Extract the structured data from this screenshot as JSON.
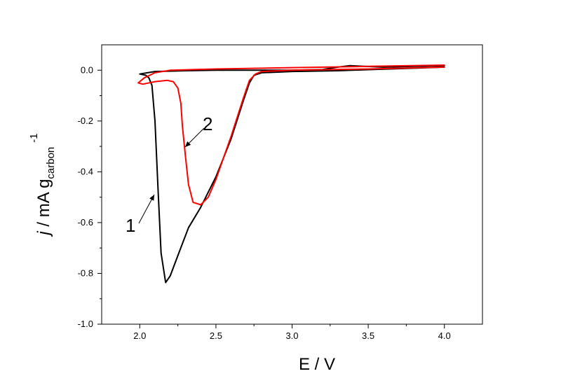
{
  "chart_data": {
    "type": "line",
    "xlabel": "E / V",
    "ylabel": {
      "prefix": "j",
      "middle": " / mA g",
      "subscript": "carbon",
      "superscript": "-1"
    },
    "xlim": [
      1.75,
      4.25
    ],
    "ylim": [
      -1.0,
      0.1
    ],
    "x_ticks": [
      2.0,
      2.5,
      3.0,
      3.5,
      4.0
    ],
    "x_tick_labels": [
      "2.0",
      "2.5",
      "3.0",
      "3.5",
      "4.0"
    ],
    "y_ticks": [
      0.0,
      -0.2,
      -0.4,
      -0.6,
      -0.8,
      -1.0
    ],
    "y_tick_labels": [
      "0.0",
      "-0.2",
      "-0.4",
      "-0.6",
      "-0.8",
      "-1.0"
    ],
    "grid": false,
    "legend": "none",
    "series": [
      {
        "color": "#000000",
        "x": [
          4.0,
          3.8,
          3.5,
          3.3,
          3.0,
          2.8,
          2.75,
          2.72,
          2.68,
          2.6,
          2.5,
          2.4,
          2.32,
          2.25,
          2.2,
          2.17,
          2.14,
          2.12,
          2.1,
          2.08,
          2.06,
          2.04,
          2.0,
          2.1,
          2.3,
          2.5,
          2.7,
          3.0,
          3.2,
          3.3,
          3.38,
          3.45,
          3.6,
          3.8,
          4.0
        ],
        "y": [
          0.012,
          0.008,
          0.002,
          -0.002,
          -0.005,
          -0.01,
          -0.02,
          -0.05,
          -0.12,
          -0.27,
          -0.42,
          -0.54,
          -0.62,
          -0.73,
          -0.81,
          -0.836,
          -0.72,
          -0.47,
          -0.2,
          -0.06,
          -0.03,
          -0.02,
          -0.015,
          -0.005,
          -0.002,
          0.0,
          0.0,
          0.0,
          0.003,
          0.012,
          0.018,
          0.016,
          0.012,
          0.015,
          0.018
        ]
      },
      {
        "color": "#ff0000",
        "x": [
          4.0,
          3.5,
          3.0,
          2.8,
          2.76,
          2.72,
          2.68,
          2.6,
          2.5,
          2.45,
          2.4,
          2.35,
          2.32,
          2.3,
          2.28,
          2.27,
          2.25,
          2.22,
          2.18,
          2.1,
          2.02,
          1.99,
          2.03,
          2.1,
          2.2,
          2.5,
          3.0,
          3.5,
          4.0
        ],
        "y": [
          0.012,
          0.005,
          0.0,
          -0.005,
          -0.015,
          -0.04,
          -0.11,
          -0.26,
          -0.43,
          -0.5,
          -0.53,
          -0.52,
          -0.45,
          -0.34,
          -0.22,
          -0.13,
          -0.07,
          -0.045,
          -0.04,
          -0.045,
          -0.055,
          -0.05,
          -0.03,
          -0.01,
          0.0,
          0.005,
          0.01,
          0.015,
          0.02
        ]
      }
    ],
    "annotations": [
      {
        "label": "1",
        "x": 2.12,
        "y": -0.48
      },
      {
        "label": "2",
        "x": 2.29,
        "y": -0.3
      }
    ]
  }
}
